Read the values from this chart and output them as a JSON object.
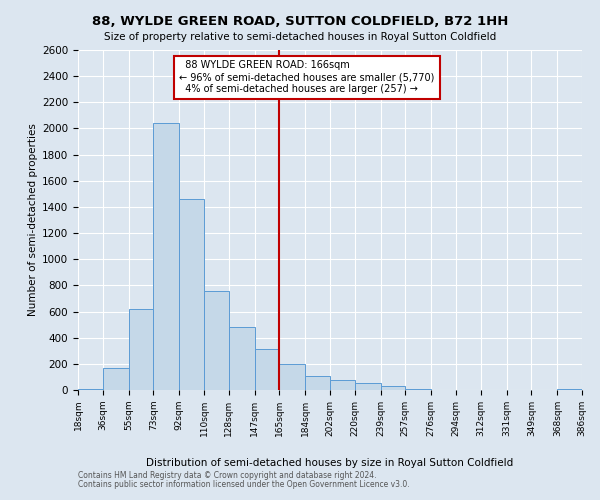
{
  "title": "88, WYLDE GREEN ROAD, SUTTON COLDFIELD, B72 1HH",
  "subtitle": "Size of property relative to semi-detached houses in Royal Sutton Coldfield",
  "xlabel_bottom": "Distribution of semi-detached houses by size in Royal Sutton Coldfield",
  "ylabel": "Number of semi-detached properties",
  "footer1": "Contains HM Land Registry data © Crown copyright and database right 2024.",
  "footer2": "Contains public sector information licensed under the Open Government Licence v3.0.",
  "property_label": "88 WYLDE GREEN ROAD: 166sqm",
  "smaller_pct": 96,
  "smaller_count": 5770,
  "larger_pct": 4,
  "larger_count": 257,
  "bin_edges": [
    18,
    36,
    55,
    73,
    92,
    110,
    128,
    147,
    165,
    184,
    202,
    220,
    239,
    257,
    276,
    294,
    312,
    331,
    349,
    368,
    386
  ],
  "bar_heights": [
    10,
    170,
    620,
    2040,
    1460,
    760,
    480,
    310,
    200,
    110,
    75,
    55,
    30,
    10,
    0,
    0,
    0,
    0,
    0,
    10
  ],
  "bar_color": "#c5d8e8",
  "bar_edge_color": "#5b9bd5",
  "vline_x": 165,
  "vline_color": "#c00000",
  "background_color": "#dce6f0",
  "annotation_box_color": "#c00000",
  "ylim": [
    0,
    2600
  ],
  "yticks": [
    0,
    200,
    400,
    600,
    800,
    1000,
    1200,
    1400,
    1600,
    1800,
    2000,
    2200,
    2400,
    2600
  ]
}
